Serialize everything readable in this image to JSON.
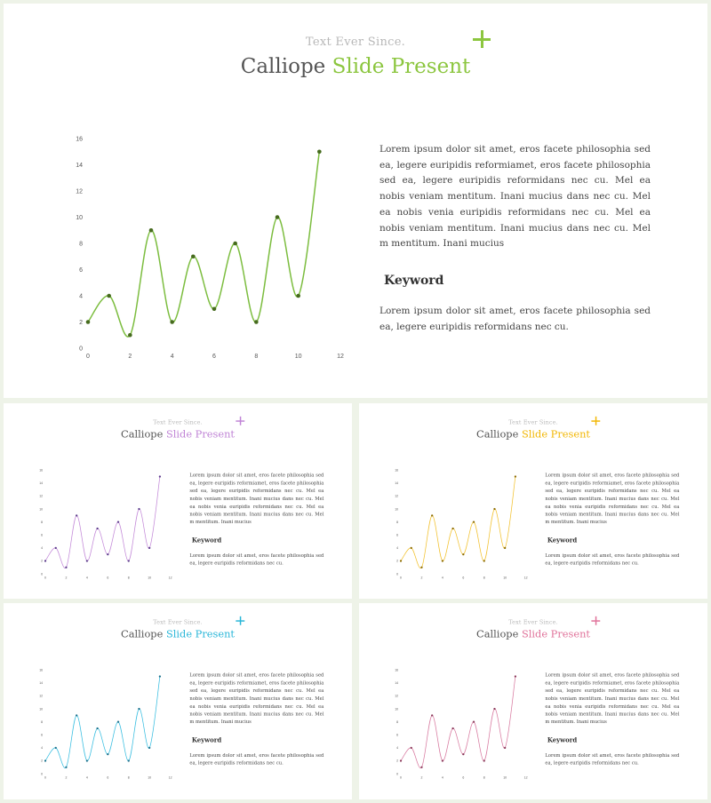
{
  "slides": [
    {
      "accent": "#8cc63f",
      "line": "#7cbd3f",
      "dot": "#466b1e"
    },
    {
      "accent": "#c084d6",
      "line": "#c389d8",
      "dot": "#5a3b8a"
    },
    {
      "accent": "#f2b705",
      "line": "#f2c12e",
      "dot": "#8a6a00"
    },
    {
      "accent": "#29b6d8",
      "line": "#36bde0",
      "dot": "#1b6f8a"
    },
    {
      "accent": "#e0729a",
      "line": "#d87aa0",
      "dot": "#8a3a5a"
    }
  ],
  "content": {
    "subtitle": "Text Ever Since.",
    "title_main": "Calliope ",
    "title_accent": "Slide Present",
    "paragraph1": "Lorem ipsum dolor sit amet, eros facete philosophia sed ea, legere euripidis reformiamet, eros facete philosophia sed ea, legere euripidis reformidans nec cu. Mel ea nobis veniam mentitum. Inani mucius dans nec cu. Mel ea nobis venia euripidis reformidans nec cu. Mel ea nobis veniam mentitum. Inani mucius dans nec cu. Mel m mentitum. Inani mucius",
    "keyword": "Keyword",
    "paragraph2": "Lorem ipsum dolor sit amet, eros facete philosophia sed ea, legere euripidis reformidans nec cu."
  },
  "chart_data": {
    "type": "line",
    "x": [
      0,
      1,
      2,
      3,
      4,
      5,
      6,
      7,
      8,
      9,
      10,
      11
    ],
    "y": [
      2,
      4,
      1,
      9,
      2,
      7,
      3,
      8,
      2,
      10,
      4,
      15
    ],
    "xlim": [
      0,
      12
    ],
    "ylim": [
      0,
      16
    ],
    "xticks": [
      0,
      2,
      4,
      6,
      8,
      10,
      12
    ],
    "yticks": [
      0,
      2,
      4,
      6,
      8,
      10,
      12,
      14,
      16
    ],
    "smooth": true,
    "grid": false
  }
}
